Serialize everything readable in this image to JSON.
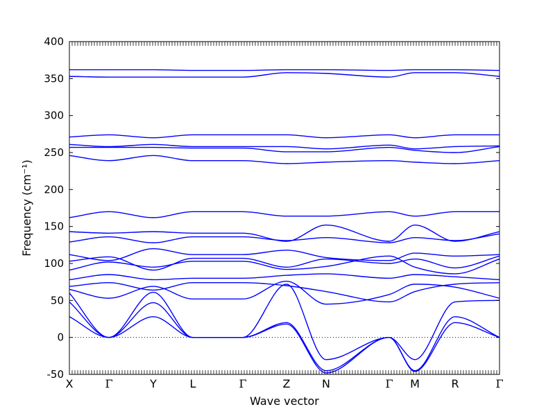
{
  "chart_data": {
    "type": "line",
    "title": "",
    "xlabel": "Wave vector",
    "ylabel": "Frequency (cm⁻¹)",
    "ylim": [
      -50,
      400
    ],
    "yticks": [
      -50,
      0,
      50,
      100,
      150,
      200,
      250,
      300,
      350,
      400
    ],
    "grid": false,
    "legend": "none",
    "line_color": "#0000ff",
    "zero_line": {
      "y": 0,
      "style": "dotted",
      "color": "#000000"
    },
    "kpoints": [
      {
        "label": "X",
        "x": 0
      },
      {
        "label": "Γ",
        "x": 57
      },
      {
        "label": "Y",
        "x": 121
      },
      {
        "label": "L",
        "x": 178
      },
      {
        "label": "Γ",
        "x": 250
      },
      {
        "label": "Z",
        "x": 313
      },
      {
        "label": "N",
        "x": 370
      },
      {
        "label": "Γ",
        "x": 461
      },
      {
        "label": "M",
        "x": 498
      },
      {
        "label": "R",
        "x": 556
      },
      {
        "label": "Γ",
        "x": 620
      }
    ],
    "x_range": [
      0,
      620
    ],
    "series": [
      {
        "x": [
          0,
          57,
          121,
          178,
          250,
          313,
          370,
          461,
          498,
          556,
          620
        ],
        "y": [
          362,
          362,
          362,
          361,
          361,
          362,
          362,
          361,
          362,
          362,
          361
        ]
      },
      {
        "x": [
          0,
          57,
          121,
          178,
          250,
          313,
          370,
          461,
          498,
          556,
          620
        ],
        "y": [
          353,
          352,
          352,
          352,
          352,
          358,
          357,
          352,
          358,
          358,
          353
        ]
      },
      {
        "x": [
          0,
          57,
          121,
          178,
          250,
          313,
          370,
          461,
          498,
          556,
          620
        ],
        "y": [
          271,
          274,
          270,
          274,
          274,
          274,
          270,
          274,
          270,
          274,
          274
        ]
      },
      {
        "x": [
          0,
          57,
          121,
          178,
          250,
          313,
          370,
          461,
          498,
          556,
          620
        ],
        "y": [
          261,
          258,
          261,
          258,
          258,
          258,
          255,
          260,
          255,
          258,
          259
        ]
      },
      {
        "x": [
          0,
          57,
          121,
          178,
          250,
          313,
          370,
          461,
          498,
          556,
          620
        ],
        "y": [
          257,
          257,
          257,
          256,
          256,
          251,
          251,
          257,
          253,
          250,
          258
        ]
      },
      {
        "x": [
          0,
          57,
          121,
          178,
          250,
          313,
          370,
          461,
          498,
          556,
          620
        ],
        "y": [
          246,
          239,
          246,
          239,
          239,
          235,
          237,
          239,
          237,
          235,
          239
        ]
      },
      {
        "x": [
          0,
          57,
          121,
          178,
          250,
          313,
          370,
          461,
          498,
          556,
          620
        ],
        "y": [
          162,
          170,
          162,
          170,
          170,
          164,
          164,
          170,
          164,
          170,
          170
        ]
      },
      {
        "x": [
          0,
          57,
          121,
          178,
          250,
          313,
          370,
          461,
          498,
          556,
          620
        ],
        "y": [
          143,
          141,
          143,
          141,
          141,
          130,
          152,
          130,
          152,
          130,
          143
        ]
      },
      {
        "x": [
          0,
          57,
          121,
          178,
          250,
          313,
          370,
          461,
          498,
          556,
          620
        ],
        "y": [
          129,
          136,
          128,
          136,
          136,
          131,
          135,
          128,
          135,
          131,
          140
        ]
      },
      {
        "x": [
          0,
          57,
          121,
          178,
          250,
          313,
          370,
          461,
          498,
          556,
          620
        ],
        "y": [
          112,
          104,
          120,
          112,
          112,
          118,
          108,
          104,
          114,
          110,
          112
        ]
      },
      {
        "x": [
          0,
          57,
          121,
          178,
          250,
          313,
          370,
          461,
          498,
          556,
          620
        ],
        "y": [
          103,
          109,
          91,
          107,
          107,
          95,
          106,
          100,
          106,
          94,
          110
        ]
      },
      {
        "x": [
          0,
          57,
          121,
          178,
          250,
          313,
          370,
          461,
          498,
          556,
          620
        ],
        "y": [
          91,
          102,
          95,
          103,
          103,
          92,
          96,
          110,
          95,
          86,
          106
        ]
      },
      {
        "x": [
          0,
          57,
          121,
          178,
          250,
          313,
          370,
          461,
          498,
          556,
          620
        ],
        "y": [
          78,
          85,
          78,
          80,
          80,
          84,
          86,
          80,
          85,
          82,
          78
        ]
      },
      {
        "x": [
          0,
          57,
          121,
          178,
          250,
          313,
          370,
          461,
          498,
          556,
          620
        ],
        "y": [
          69,
          74,
          64,
          74,
          74,
          70,
          62,
          48,
          62,
          72,
          74
        ]
      },
      {
        "x": [
          0,
          57,
          121,
          178,
          250,
          313,
          370,
          461,
          498,
          556,
          620
        ],
        "y": [
          65,
          53,
          69,
          52,
          52,
          76,
          45,
          58,
          72,
          68,
          53
        ]
      },
      {
        "x": [
          0,
          57,
          121,
          178,
          250,
          313,
          370,
          461,
          498,
          556,
          620
        ],
        "y": [
          60,
          0,
          61,
          0,
          0,
          72,
          -30,
          0,
          -30,
          48,
          50
        ]
      },
      {
        "x": [
          0,
          57,
          121,
          178,
          250,
          313,
          370,
          461,
          498,
          556,
          620
        ],
        "y": [
          48,
          0,
          47,
          0,
          0,
          20,
          -45,
          0,
          -45,
          28,
          0
        ]
      },
      {
        "x": [
          0,
          57,
          121,
          178,
          250,
          313,
          370,
          461,
          498,
          556,
          620
        ],
        "y": [
          28,
          0,
          28,
          0,
          0,
          18,
          -48,
          0,
          -46,
          20,
          0
        ]
      }
    ]
  }
}
